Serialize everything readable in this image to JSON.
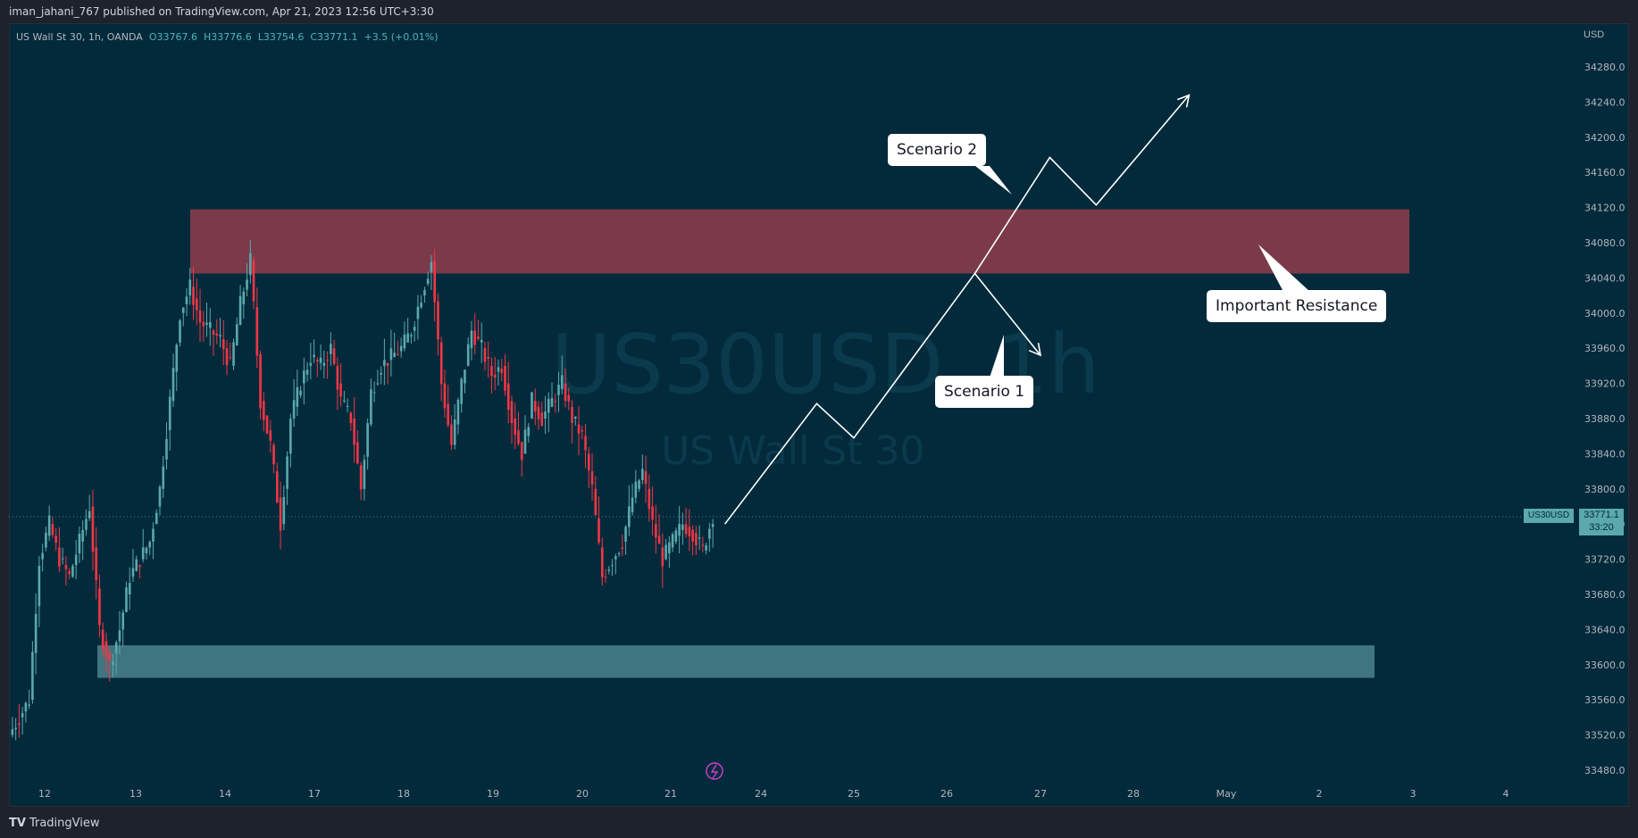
{
  "header": {
    "publish_text": "iman_jahani_767 published on TradingView.com, Apr 21, 2023 12:56 UTC+3:30"
  },
  "legend": {
    "symbol": "US Wall St 30, 1h, OANDA",
    "open": "O33767.6",
    "high": "H33776.6",
    "low": "L33754.6",
    "close": "C33771.1",
    "change": "+3.5 (+0.01%)"
  },
  "watermark": {
    "symbol": "US30USD, 1h",
    "name": "US Wall St 30"
  },
  "currency": "USD",
  "last": {
    "label": "US30USD",
    "price": "33771.1",
    "countdown": "33:20"
  },
  "footer": {
    "brand": "TradingView",
    "brand_icon": "tradingview-logo-icon"
  },
  "annotations": {
    "scenario2": "Scenario 2",
    "scenario1": "Scenario 1",
    "resistance": "Important Resistance"
  },
  "colors": {
    "background": "#032a3b",
    "up": "#5ba8ad",
    "down": "#f23645",
    "resistance_zone": "#7a3a4a",
    "support_zone": "#3f7580",
    "arrow": "#ffffff"
  },
  "chart_data": {
    "type": "candlestick",
    "title": "US Wall St 30, 1h, OANDA",
    "ylabel": "USD",
    "y_ticks": [
      34280,
      34240,
      34200,
      34160,
      34120,
      34080,
      34040,
      34000,
      33960,
      33920,
      33880,
      33840,
      33800,
      33760,
      33720,
      33680,
      33640,
      33600,
      33560,
      33520,
      33480
    ],
    "x_ticks": [
      "12",
      "13",
      "14",
      "17",
      "18",
      "19",
      "20",
      "21",
      "24",
      "25",
      "26",
      "27",
      "28",
      "May",
      "2",
      "3",
      "4"
    ],
    "ylim": [
      33455,
      34317
    ],
    "close_path": [
      33540,
      33560,
      33720,
      33760,
      33720,
      33700,
      33740,
      33780,
      33640,
      33600,
      33640,
      33700,
      33720,
      33740,
      33800,
      33900,
      34000,
      34030,
      33990,
      33980,
      33970,
      33940,
      34010,
      34060,
      33900,
      33850,
      33760,
      33880,
      33920,
      33950,
      33940,
      33960,
      33900,
      33880,
      33800,
      33910,
      33940,
      33950,
      33960,
      33980,
      34020,
      34060,
      33920,
      33850,
      33920,
      33980,
      33960,
      33930,
      33940,
      33880,
      33840,
      33900,
      33880,
      33900,
      33920,
      33880,
      33860,
      33800,
      33700,
      33720,
      33740,
      33790,
      33820,
      33760,
      33720,
      33740,
      33760,
      33750,
      33730,
      33770
    ],
    "resistance_zone": {
      "low": 34045,
      "high": 34118,
      "from": "13.6",
      "to": "May 3.0"
    },
    "support_zone": {
      "low": 33585,
      "high": 33622,
      "from": "12.6",
      "to": "May 2.6"
    },
    "scenario_path": [
      {
        "x": "21.6",
        "y": 33760
      },
      {
        "x": "24.6",
        "y": 33897
      },
      {
        "x": "25.0",
        "y": 33858
      },
      {
        "x": "26.3",
        "y": 34045
      },
      {
        "x": "27.1",
        "y": 34177
      },
      {
        "x": "27.6",
        "y": 34123
      },
      {
        "x": "28.6",
        "y": 34248
      }
    ],
    "scenario1_path": [
      {
        "x": "26.3",
        "y": 34045
      },
      {
        "x": "27.0",
        "y": 33952
      }
    ]
  }
}
